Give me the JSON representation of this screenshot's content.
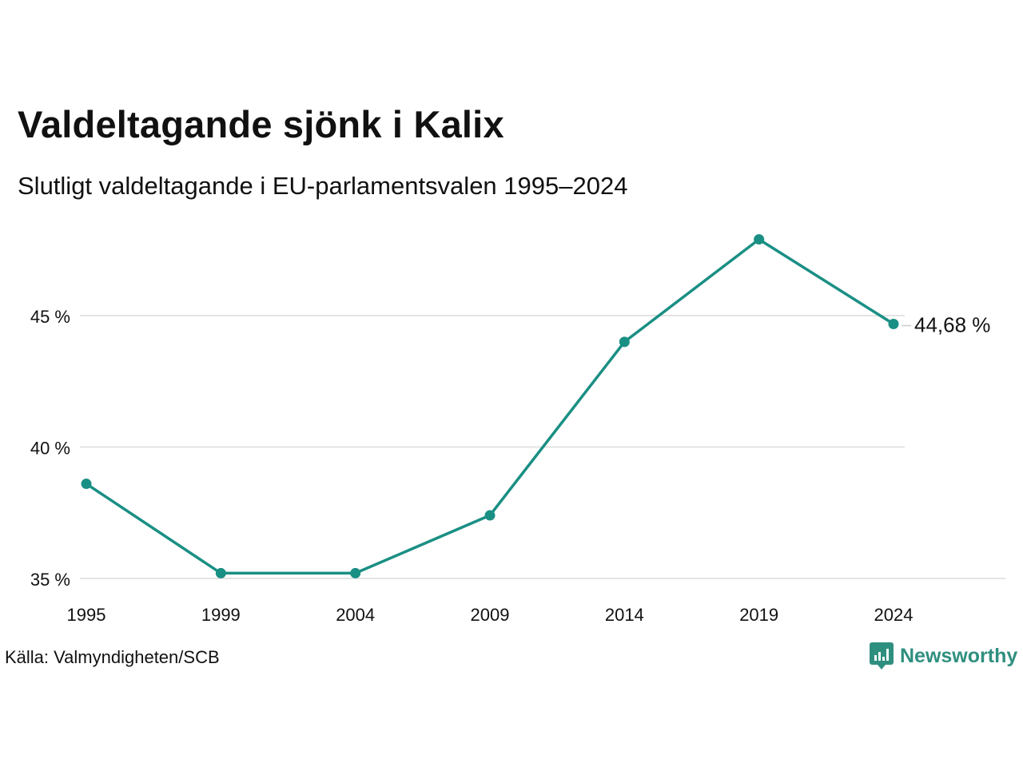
{
  "header": {
    "title": "Valdeltagande sjönk i Kalix",
    "subtitle": "Slutligt valdeltagande i EU-parlamentsvalen 1995–2024"
  },
  "footer": {
    "source": "Källa: Valmyndigheten/SCB",
    "brand": "Newsworthy",
    "brand_icon": "bar-chart-speech-bubble-icon"
  },
  "colors": {
    "line": "#1a8f84",
    "grid": "#e3e3e3",
    "brand": "#2f8f7f"
  },
  "chart_data": {
    "type": "line",
    "title": "Valdeltagande sjönk i Kalix",
    "subtitle": "Slutligt valdeltagande i EU-parlamentsvalen 1995–2024",
    "xlabel": "",
    "ylabel": "",
    "categories": [
      "1995",
      "1999",
      "2004",
      "2009",
      "2014",
      "2019",
      "2024"
    ],
    "series": [
      {
        "values": [
          38.6,
          35.2,
          35.2,
          37.4,
          44.0,
          47.9,
          44.68
        ]
      }
    ],
    "ylim": [
      35,
      47.9
    ],
    "yticks": [
      35,
      40,
      45
    ],
    "ytick_labels": [
      "35 %",
      "40 %",
      "45 %"
    ],
    "end_label": "44,68 %",
    "grid": true,
    "legend": "none"
  }
}
